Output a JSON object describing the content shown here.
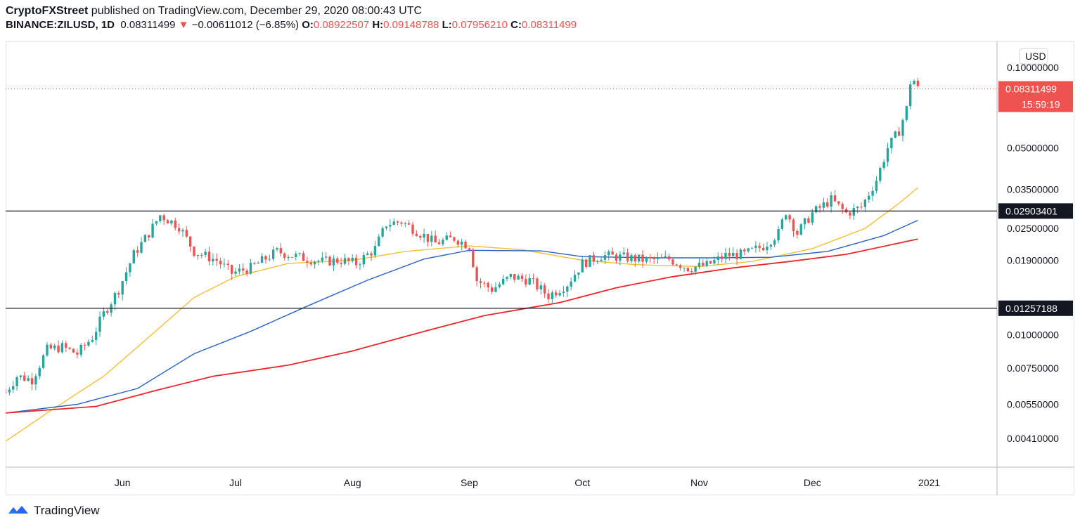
{
  "header": {
    "publisher": "CryptoFXStreet",
    "published_text": " published on TradingView.com, December 29, 2020 08:00:43 UTC",
    "symbol": "BINANCE:ZILUSD, 1D",
    "last": "0.08311499",
    "change_arrow": "▼",
    "change": "−0.00611012 (−6.85%)",
    "o_label": "O:",
    "o": "0.08922507",
    "h_label": "H:",
    "h": "0.09148788",
    "l_label": "L:",
    "l": "0.07956210",
    "c_label": "C:",
    "c": "0.08311499"
  },
  "footer": {
    "brand": "TradingView",
    "brand_icon": "tradingview-logo-icon"
  },
  "colors": {
    "up": "#26a69a",
    "down": "#ef5350",
    "ma_yellow": "#f5bf32",
    "ma_blue": "#2962c4",
    "ma_red": "#e8262b",
    "hline": "#131722",
    "price_tag": "#ef5350"
  },
  "chart_data": {
    "type": "candlestick",
    "symbol": "ZILUSD",
    "interval": "1D",
    "y_scale": "log",
    "ylim": [
      0.0032,
      0.125
    ],
    "xlim": [
      "2020-05-01",
      "2021-01-19"
    ],
    "currency_label": "USD",
    "y_ticks": [
      "0.10000000",
      "0.05000000",
      "0.03500000",
      "0.02500000",
      "0.01900000",
      "0.01000000",
      "0.00750000",
      "0.00550000",
      "0.00410000"
    ],
    "y_tick_values": [
      0.1,
      0.05,
      0.035,
      0.025,
      0.019,
      0.01,
      0.0075,
      0.0055,
      0.0041
    ],
    "x_ticks": [
      {
        "label": "Jun",
        "date": "2020-06-01"
      },
      {
        "label": "Jul",
        "date": "2020-07-01"
      },
      {
        "label": "Aug",
        "date": "2020-08-01"
      },
      {
        "label": "Sep",
        "date": "2020-09-01"
      },
      {
        "label": "Oct",
        "date": "2020-10-01"
      },
      {
        "label": "Nov",
        "date": "2020-11-01"
      },
      {
        "label": "Dec",
        "date": "2020-12-01"
      },
      {
        "label": "2021",
        "date": "2021-01-01"
      }
    ],
    "horizontal_levels": [
      {
        "value": 0.02903401,
        "label": "0.02903401"
      },
      {
        "value": 0.01257188,
        "label": "0.01257188"
      }
    ],
    "last_price": {
      "value": 0.08311499,
      "label": "0.08311499",
      "countdown": "15:59:19"
    },
    "close_path": [
      {
        "date": "2020-05-01",
        "close": 0.0061
      },
      {
        "date": "2020-05-04",
        "close": 0.007
      },
      {
        "date": "2020-05-08",
        "close": 0.0068
      },
      {
        "date": "2020-05-12",
        "close": 0.0088
      },
      {
        "date": "2020-05-16",
        "close": 0.009
      },
      {
        "date": "2020-05-20",
        "close": 0.0085
      },
      {
        "date": "2020-05-24",
        "close": 0.0098
      },
      {
        "date": "2020-05-27",
        "close": 0.012
      },
      {
        "date": "2020-05-31",
        "close": 0.0148
      },
      {
        "date": "2020-06-04",
        "close": 0.02
      },
      {
        "date": "2020-06-08",
        "close": 0.024
      },
      {
        "date": "2020-06-11",
        "close": 0.028
      },
      {
        "date": "2020-06-16",
        "close": 0.0255
      },
      {
        "date": "2020-06-20",
        "close": 0.0205
      },
      {
        "date": "2020-06-26",
        "close": 0.019
      },
      {
        "date": "2020-06-30",
        "close": 0.017
      },
      {
        "date": "2020-07-05",
        "close": 0.0178
      },
      {
        "date": "2020-07-12",
        "close": 0.0205
      },
      {
        "date": "2020-07-18",
        "close": 0.0195
      },
      {
        "date": "2020-07-24",
        "close": 0.0188
      },
      {
        "date": "2020-07-29",
        "close": 0.019
      },
      {
        "date": "2020-08-02",
        "close": 0.0185
      },
      {
        "date": "2020-08-07",
        "close": 0.021
      },
      {
        "date": "2020-08-10",
        "close": 0.026
      },
      {
        "date": "2020-08-14",
        "close": 0.0265
      },
      {
        "date": "2020-08-18",
        "close": 0.0245
      },
      {
        "date": "2020-08-23",
        "close": 0.022
      },
      {
        "date": "2020-08-28",
        "close": 0.023
      },
      {
        "date": "2020-09-01",
        "close": 0.0215
      },
      {
        "date": "2020-09-03",
        "close": 0.016
      },
      {
        "date": "2020-09-07",
        "close": 0.0148
      },
      {
        "date": "2020-09-12",
        "close": 0.0165
      },
      {
        "date": "2020-09-17",
        "close": 0.016
      },
      {
        "date": "2020-09-22",
        "close": 0.014
      },
      {
        "date": "2020-09-27",
        "close": 0.0155
      },
      {
        "date": "2020-10-01",
        "close": 0.0185
      },
      {
        "date": "2020-10-06",
        "close": 0.0198
      },
      {
        "date": "2020-10-12",
        "close": 0.0195
      },
      {
        "date": "2020-10-18",
        "close": 0.019
      },
      {
        "date": "2020-10-24",
        "close": 0.0192
      },
      {
        "date": "2020-10-29",
        "close": 0.0178
      },
      {
        "date": "2020-11-03",
        "close": 0.0182
      },
      {
        "date": "2020-11-08",
        "close": 0.0198
      },
      {
        "date": "2020-11-13",
        "close": 0.02
      },
      {
        "date": "2020-11-18",
        "close": 0.0215
      },
      {
        "date": "2020-11-22",
        "close": 0.024
      },
      {
        "date": "2020-11-24",
        "close": 0.029
      },
      {
        "date": "2020-11-27",
        "close": 0.024
      },
      {
        "date": "2020-12-01",
        "close": 0.0285
      },
      {
        "date": "2020-12-06",
        "close": 0.032
      },
      {
        "date": "2020-12-10",
        "close": 0.0285
      },
      {
        "date": "2020-12-14",
        "close": 0.03
      },
      {
        "date": "2020-12-18",
        "close": 0.038
      },
      {
        "date": "2020-12-21",
        "close": 0.05
      },
      {
        "date": "2020-12-24",
        "close": 0.058
      },
      {
        "date": "2020-12-26",
        "close": 0.07
      },
      {
        "date": "2020-12-27",
        "close": 0.088
      },
      {
        "date": "2020-12-28",
        "close": 0.0892
      },
      {
        "date": "2020-12-29",
        "close": 0.0831
      }
    ],
    "moving_averages": [
      {
        "color": "#f5bf32",
        "points": [
          {
            "date": "2020-05-01",
            "value": 0.004
          },
          {
            "date": "2020-05-12",
            "value": 0.0051
          },
          {
            "date": "2020-05-27",
            "value": 0.007
          },
          {
            "date": "2020-06-08",
            "value": 0.0098
          },
          {
            "date": "2020-06-20",
            "value": 0.0138
          },
          {
            "date": "2020-07-01",
            "value": 0.0165
          },
          {
            "date": "2020-07-15",
            "value": 0.0185
          },
          {
            "date": "2020-08-01",
            "value": 0.019
          },
          {
            "date": "2020-08-15",
            "value": 0.0205
          },
          {
            "date": "2020-09-01",
            "value": 0.0215
          },
          {
            "date": "2020-09-15",
            "value": 0.0208
          },
          {
            "date": "2020-10-01",
            "value": 0.019
          },
          {
            "date": "2020-10-15",
            "value": 0.0183
          },
          {
            "date": "2020-11-01",
            "value": 0.018
          },
          {
            "date": "2020-11-15",
            "value": 0.0188
          },
          {
            "date": "2020-12-01",
            "value": 0.021
          },
          {
            "date": "2020-12-15",
            "value": 0.025
          },
          {
            "date": "2020-12-24",
            "value": 0.031
          },
          {
            "date": "2020-12-29",
            "value": 0.0355
          }
        ]
      },
      {
        "color": "#2962c4",
        "points": [
          {
            "date": "2020-05-01",
            "value": 0.0051
          },
          {
            "date": "2020-05-20",
            "value": 0.0055
          },
          {
            "date": "2020-06-05",
            "value": 0.0063
          },
          {
            "date": "2020-06-20",
            "value": 0.0085
          },
          {
            "date": "2020-07-05",
            "value": 0.0103
          },
          {
            "date": "2020-07-20",
            "value": 0.0128
          },
          {
            "date": "2020-08-05",
            "value": 0.016
          },
          {
            "date": "2020-08-20",
            "value": 0.0192
          },
          {
            "date": "2020-09-01",
            "value": 0.0207
          },
          {
            "date": "2020-09-20",
            "value": 0.0206
          },
          {
            "date": "2020-10-01",
            "value": 0.0196
          },
          {
            "date": "2020-10-20",
            "value": 0.0194
          },
          {
            "date": "2020-11-05",
            "value": 0.0194
          },
          {
            "date": "2020-11-20",
            "value": 0.0195
          },
          {
            "date": "2020-12-05",
            "value": 0.0205
          },
          {
            "date": "2020-12-20",
            "value": 0.0235
          },
          {
            "date": "2020-12-29",
            "value": 0.0268
          }
        ]
      },
      {
        "color": "#e8262b",
        "points": [
          {
            "date": "2020-05-01",
            "value": 0.0051
          },
          {
            "date": "2020-05-25",
            "value": 0.0054
          },
          {
            "date": "2020-06-10",
            "value": 0.0062
          },
          {
            "date": "2020-06-25",
            "value": 0.007
          },
          {
            "date": "2020-07-15",
            "value": 0.0077
          },
          {
            "date": "2020-08-01",
            "value": 0.0087
          },
          {
            "date": "2020-08-20",
            "value": 0.0103
          },
          {
            "date": "2020-09-05",
            "value": 0.0118
          },
          {
            "date": "2020-09-25",
            "value": 0.0132
          },
          {
            "date": "2020-10-10",
            "value": 0.015
          },
          {
            "date": "2020-10-25",
            "value": 0.0165
          },
          {
            "date": "2020-11-10",
            "value": 0.0178
          },
          {
            "date": "2020-11-25",
            "value": 0.0188
          },
          {
            "date": "2020-12-10",
            "value": 0.02
          },
          {
            "date": "2020-12-29",
            "value": 0.0228
          }
        ]
      }
    ]
  }
}
